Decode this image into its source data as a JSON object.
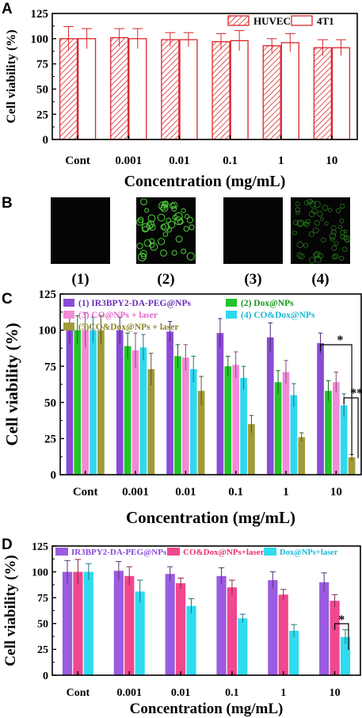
{
  "chart_data": [
    {
      "panel": "A",
      "type": "bar",
      "xlabel": "Concentration (mg/mL)",
      "ylabel": "Cell viability (%)",
      "ylim": [
        0,
        125
      ],
      "yticks": [
        "0",
        "25",
        "50",
        "75",
        "100",
        "125"
      ],
      "categories": [
        "Cont",
        "0.001",
        "0.01",
        "0.1",
        "1",
        "10"
      ],
      "legend_position": "top-right",
      "series": [
        {
          "name": "HUVEC",
          "pattern": "hatch",
          "color": "#d9262a",
          "values": [
            100,
            101,
            99,
            97,
            93,
            91
          ],
          "errors": [
            12,
            9,
            7,
            8,
            7,
            8
          ]
        },
        {
          "name": "4T1",
          "pattern": "open",
          "color": "#d9262a",
          "values": [
            100,
            100,
            99,
            98,
            96,
            91
          ],
          "errors": [
            10,
            10,
            7,
            10,
            9,
            8
          ]
        }
      ],
      "annotations": []
    },
    {
      "panel": "B",
      "type": "image-row",
      "labels": [
        "(1)",
        "(2)",
        "(3)",
        "(4)"
      ]
    },
    {
      "panel": "C",
      "type": "bar",
      "xlabel": "Concentration (mg/mL)",
      "ylabel": "Cell viability (%)",
      "ylim": [
        0,
        125
      ],
      "yticks": [
        "0",
        "25",
        "50",
        "75",
        "100",
        "125"
      ],
      "categories": [
        "Cont",
        "0.001",
        "0.01",
        "0.1",
        "1",
        "10"
      ],
      "legend_position": "top",
      "series": [
        {
          "name": "(1) IR3BPY2-DA-PEG@NPs",
          "color": "#8a4bd6",
          "values": [
            100,
            100,
            99,
            98,
            95,
            91
          ],
          "errors": [
            10,
            9,
            7,
            10,
            10,
            7
          ]
        },
        {
          "name": "(2)  Dox@NPs",
          "color": "#22c52a",
          "values": [
            100,
            89,
            82,
            75,
            64,
            58
          ],
          "errors": [
            10,
            9,
            8,
            7,
            8,
            7
          ]
        },
        {
          "name": "(3) CO@NPs + laser",
          "color": "#f28ad8",
          "values": [
            100,
            86,
            81,
            76,
            71,
            64
          ],
          "errors": [
            12,
            12,
            9,
            9,
            8,
            7
          ]
        },
        {
          "name": "(4)   CO&Dox@NPs",
          "color": "#2fd8ee",
          "values": [
            100,
            88,
            73,
            67,
            55,
            48
          ],
          "errors": [
            9,
            9,
            9,
            8,
            8,
            8
          ]
        },
        {
          "name": "(5)CO&Dox@NPs + laser",
          "color": "#a09a3a",
          "values": [
            100,
            73,
            58,
            35,
            26,
            12
          ],
          "errors": [
            10,
            11,
            10,
            6,
            3,
            2
          ]
        }
      ],
      "annotations": [
        "*",
        "**"
      ]
    },
    {
      "panel": "D",
      "type": "bar",
      "xlabel": "Concentration (mg/mL)",
      "ylabel": "Cell viability (%)",
      "ylim": [
        0,
        125
      ],
      "yticks": [
        "0",
        "25",
        "50",
        "75",
        "100",
        "125"
      ],
      "categories": [
        "Cont",
        "0.001",
        "0.01",
        "0.1",
        "1",
        "10"
      ],
      "legend_position": "top",
      "series": [
        {
          "name": "IR3BPY2-DA-PEG@NPs",
          "color": "#9a5ce0",
          "values": [
            100,
            101,
            98,
            96,
            92,
            90
          ],
          "errors": [
            11,
            9,
            7,
            8,
            8,
            9
          ]
        },
        {
          "name": "CO&Dox@NPs+laser",
          "color": "#f0478f",
          "values": [
            100,
            96,
            89,
            85,
            78,
            72
          ],
          "errors": [
            12,
            9,
            5,
            7,
            5,
            6
          ]
        },
        {
          "name": "Dox@NPs+laser",
          "color": "#2fdbee",
          "values": [
            100,
            81,
            67,
            55,
            43,
            37
          ],
          "errors": [
            8,
            11,
            7,
            4,
            6,
            7
          ]
        }
      ],
      "annotations": [
        "*"
      ]
    }
  ],
  "panel_letters": [
    "A",
    "B",
    "C",
    "D"
  ]
}
